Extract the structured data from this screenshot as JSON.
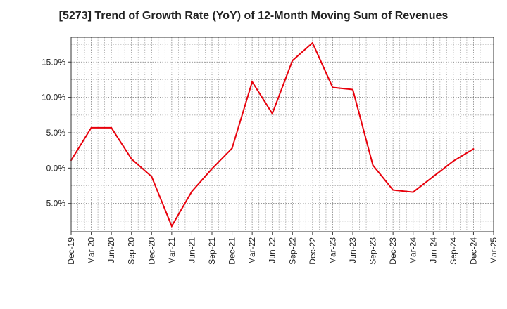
{
  "chart_data": {
    "type": "line",
    "title": "[5273]  Trend of Growth Rate (YoY) of 12-Month Moving Sum of Revenues",
    "xlabel": "",
    "ylabel": "",
    "ylim": [
      -9,
      18.5
    ],
    "y_ticks": [
      -5,
      0,
      5,
      10,
      15
    ],
    "y_tick_labels": [
      "-5.0%",
      "0.0%",
      "5.0%",
      "10.0%",
      "15.0%"
    ],
    "x_tick_labels": [
      "Dec-19",
      "Mar-20",
      "Jun-20",
      "Sep-20",
      "Dec-20",
      "Mar-21",
      "Jun-21",
      "Sep-21",
      "Dec-21",
      "Mar-22",
      "Jun-22",
      "Sep-22",
      "Dec-22",
      "Mar-23",
      "Jun-23",
      "Sep-23",
      "Dec-23",
      "Mar-24",
      "Jun-24",
      "Sep-24",
      "Dec-24",
      "Mar-25"
    ],
    "grid": true,
    "series": [
      {
        "color": "#e8000b",
        "x": [
          "Dec-19",
          "Mar-20",
          "Jun-20",
          "Sep-20",
          "Dec-20",
          "Mar-21",
          "Jun-21",
          "Sep-21",
          "Dec-21",
          "Mar-22",
          "Jun-22",
          "Sep-22",
          "Dec-22",
          "Mar-23",
          "Jun-23",
          "Sep-23",
          "Dec-23",
          "Mar-24",
          "Jun-24",
          "Sep-24",
          "Dec-24"
        ],
        "values": [
          1.1,
          5.7,
          5.7,
          1.3,
          -1.2,
          -8.2,
          -3.3,
          -0.1,
          2.8,
          12.2,
          7.7,
          15.2,
          17.7,
          11.4,
          11.1,
          0.4,
          -3.1,
          -3.4,
          -1.2,
          1.0,
          2.7
        ]
      }
    ]
  }
}
